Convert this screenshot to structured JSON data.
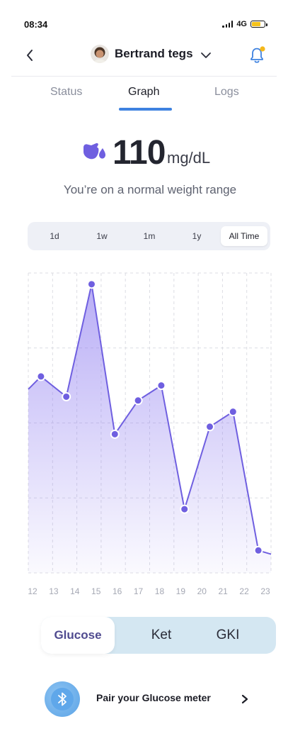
{
  "status_bar": {
    "time": "08:34",
    "network": "4G"
  },
  "header": {
    "user_name": "Bertrand tegs"
  },
  "tabs": [
    {
      "label": "Status"
    },
    {
      "label": "Graph"
    },
    {
      "label": "Logs"
    }
  ],
  "reading": {
    "value": "110",
    "unit": "mg/dL",
    "subtitle": "You’re on a normal weight range"
  },
  "time_ranges": [
    {
      "label": "1d"
    },
    {
      "label": "1w"
    },
    {
      "label": "1m"
    },
    {
      "label": "1y"
    },
    {
      "label": "All Time"
    }
  ],
  "selected_range": "All Time",
  "chart_data": {
    "type": "area",
    "x": [
      12,
      13,
      14,
      15,
      16,
      17,
      18,
      19,
      20,
      21,
      22,
      23
    ],
    "tick_labels": [
      "12",
      "13",
      "14",
      "15",
      "16",
      "17",
      "18",
      "19",
      "20",
      "21",
      "22",
      "23"
    ],
    "points": [
      {
        "x": 11.8,
        "y": 2.45,
        "marker": false
      },
      {
        "x": 12.4,
        "y": 2.62,
        "marker": true
      },
      {
        "x": 13.6,
        "y": 2.35,
        "marker": true
      },
      {
        "x": 14.8,
        "y": 3.85,
        "marker": true
      },
      {
        "x": 15.9,
        "y": 1.85,
        "marker": true
      },
      {
        "x": 17.0,
        "y": 2.3,
        "marker": true
      },
      {
        "x": 18.1,
        "y": 2.5,
        "marker": true
      },
      {
        "x": 19.2,
        "y": 0.85,
        "marker": true
      },
      {
        "x": 20.4,
        "y": 1.95,
        "marker": true
      },
      {
        "x": 21.5,
        "y": 2.15,
        "marker": true
      },
      {
        "x": 22.7,
        "y": 0.3,
        "marker": true
      },
      {
        "x": 23.3,
        "y": 0.25,
        "marker": false
      }
    ],
    "xlim": [
      11.8,
      23.3
    ],
    "ylim": [
      0,
      4
    ],
    "grid": true,
    "line_color": "#6f5fe0",
    "fill_color": "#8e7cf0"
  },
  "measure_types": [
    {
      "label": "Glucose"
    },
    {
      "label": "Ket"
    },
    {
      "label": "GKI"
    }
  ],
  "pair": {
    "label": "Pair your Glucose meter"
  },
  "colors": {
    "accent_blue": "#3e82e0",
    "purple": "#6f5fe0",
    "switch_bg": "#d4e7f2",
    "notification_dot": "#f4b81a"
  }
}
